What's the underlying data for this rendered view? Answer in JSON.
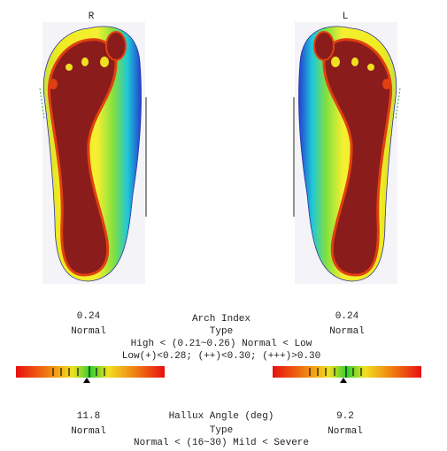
{
  "feet": {
    "right_label": "R",
    "left_label": "L"
  },
  "arch": {
    "right_value": "0.24",
    "right_type": "Normal",
    "title": "Arch Index",
    "subtitle": "Type",
    "scale": "High < (0.21~0.26) Normal < Low",
    "levels": "Low(+)<0.28; (++)<0.30; (+++)>0.30",
    "left_value": "0.24",
    "left_type": "Normal"
  },
  "hallux": {
    "right_value": "11.8",
    "right_type": "Normal",
    "title": "Hallux Angle (deg)",
    "subtitle": "Type",
    "scale": "Normal < (16~30) Mild < Severe",
    "left_value": "9.2",
    "left_type": "Normal"
  }
}
